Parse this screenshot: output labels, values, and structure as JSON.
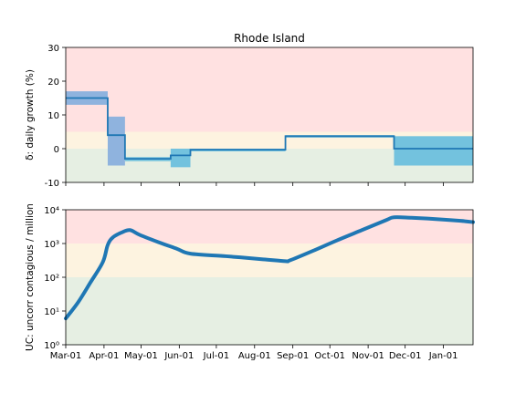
{
  "title": "Rhode Island",
  "x_axis": {
    "ticks": [
      "Mar-01",
      "Apr-01",
      "May-01",
      "Jun-01",
      "Jul-01",
      "Aug-01",
      "Sep-01",
      "Oct-01",
      "Nov-01",
      "Dec-01",
      "Jan-01"
    ],
    "tick_days": [
      0,
      31,
      61,
      92,
      122,
      153,
      184,
      214,
      245,
      275,
      306
    ],
    "range_days": [
      0,
      330
    ]
  },
  "chart_data": [
    {
      "type": "line",
      "title": "Rhode Island",
      "ylabel": "δ: daily growth (%)",
      "ylim": [
        -10,
        30
      ],
      "yticks": [
        -10,
        0,
        10,
        20,
        30
      ],
      "x_units": "days since Mar-01",
      "grid": false,
      "zones": [
        {
          "from": 5,
          "to": 30,
          "color": "#ffe1e1"
        },
        {
          "from": 0,
          "to": 5,
          "color": "#fdf3e0"
        },
        {
          "from": -10,
          "to": 0,
          "color": "#e6efe3"
        }
      ],
      "segments": [
        {
          "x0": 0,
          "x1": 34,
          "value": 15,
          "low": 13,
          "high": 17,
          "band_color": "#8fb3de"
        },
        {
          "x0": 34,
          "x1": 48,
          "value": 4,
          "low": -5,
          "high": 9.5,
          "band_color": "#8fb3de"
        },
        {
          "x0": 48,
          "x1": 85,
          "value": -3,
          "low": -3.7,
          "high": -2.5,
          "band_color": "#73c2de"
        },
        {
          "x0": 85,
          "x1": 101,
          "value": -2,
          "low": -5.5,
          "high": 0,
          "band_color": "#73c2de"
        },
        {
          "x0": 101,
          "x1": 178,
          "value": -0.3,
          "low": -0.8,
          "high": 0,
          "band_color": "#73c2de"
        },
        {
          "x0": 178,
          "x1": 266,
          "value": 3.7,
          "low": 3.3,
          "high": 4,
          "band_color": "#73c2de"
        },
        {
          "x0": 266,
          "x1": 330,
          "value": 0,
          "low": -5,
          "high": 3.7,
          "band_color": "#73c2de"
        }
      ],
      "line_color": "#1f77b4"
    },
    {
      "type": "line",
      "ylabel": "UC: uncorr contagious / million",
      "yscale": "log",
      "ylim": [
        1,
        10000
      ],
      "yticks": [
        1,
        10,
        100,
        1000,
        10000
      ],
      "ytick_labels": [
        "10⁰",
        "10¹",
        "10²",
        "10³",
        "10⁴"
      ],
      "x_units": "days since Mar-01",
      "grid": false,
      "zones": [
        {
          "from": 1000,
          "to": 10000,
          "color": "#ffe1e1"
        },
        {
          "from": 100,
          "to": 1000,
          "color": "#fdf3e0"
        },
        {
          "from": 1,
          "to": 100,
          "color": "#e6efe3"
        }
      ],
      "series": [
        {
          "x": [
            0,
            10,
            20,
            30,
            34,
            38,
            45,
            52,
            60,
            75,
            90,
            101,
            130,
            160,
            178,
            182,
            200,
            220,
            240,
            260,
            266,
            280,
            300,
            320,
            330
          ],
          "y": [
            6,
            18,
            70,
            280,
            900,
            1500,
            2100,
            2500,
            1800,
            1100,
            700,
            500,
            420,
            340,
            300,
            320,
            600,
            1250,
            2500,
            5000,
            6000,
            5800,
            5300,
            4700,
            4300
          ],
          "color": "#1f77b4"
        }
      ]
    }
  ]
}
